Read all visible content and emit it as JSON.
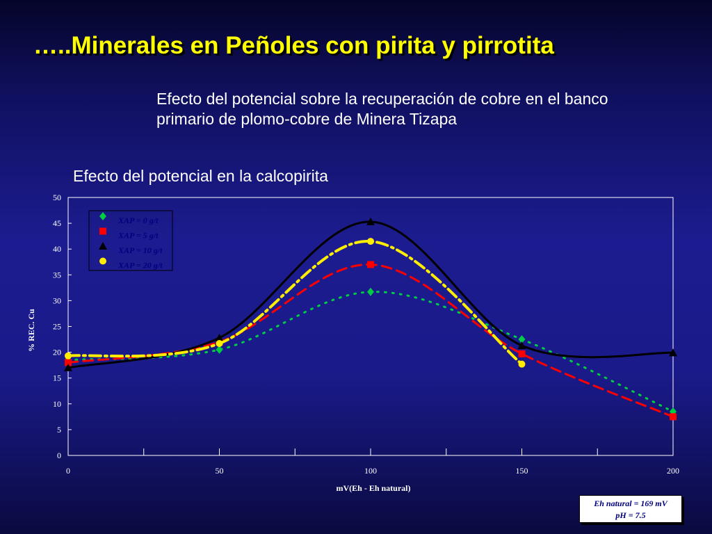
{
  "slide": {
    "title": "…..Minerales en Peñoles con pirita y pirrotita",
    "subtitle": "Efecto del potencial sobre la recuperación de cobre en el banco primario de plomo-cobre de Minera Tizapa",
    "chart_heading": "Efecto del potencial en la calcopirita"
  },
  "note": {
    "line1": "Eh natural = 169 mV",
    "line2": "pH = 7.5"
  },
  "chart_data": {
    "type": "line",
    "title": "Efecto del potencial en la calcopirita",
    "xlabel": "mV(Eh - Eh natural)",
    "ylabel": "% REC. Cu",
    "xlim": [
      0,
      200
    ],
    "ylim": [
      0,
      50
    ],
    "xticks": [
      0,
      50,
      100,
      150,
      200
    ],
    "yticks": [
      0,
      5,
      10,
      15,
      20,
      25,
      30,
      35,
      40,
      45,
      50
    ],
    "grid": false,
    "legend_position": "top-left",
    "series": [
      {
        "name": "XAP = 0 g/t",
        "color": "#00cc44",
        "marker": "diamond",
        "line": "dotted",
        "x": [
          0,
          50,
          100,
          150,
          200
        ],
        "y": [
          18.5,
          20.5,
          31.7,
          22.5,
          8.5
        ]
      },
      {
        "name": "XAP = 5 g/t",
        "color": "#ff0000",
        "marker": "square",
        "line": "dashed",
        "x": [
          0,
          50,
          100,
          150,
          200
        ],
        "y": [
          18.0,
          22.0,
          37.0,
          19.7,
          7.5
        ]
      },
      {
        "name": "XAP = 10 g/t",
        "color": "#000000",
        "marker": "triangle",
        "line": "solid",
        "x": [
          0,
          50,
          100,
          150,
          200
        ],
        "y": [
          17.0,
          22.8,
          45.3,
          21.3,
          19.9
        ]
      },
      {
        "name": "XAP = 20 g/t",
        "color": "#ffee00",
        "marker": "circle",
        "line": "dashdot",
        "x": [
          0,
          50,
          100,
          150,
          200
        ],
        "y": [
          19.3,
          21.7,
          41.5,
          17.7,
          null
        ]
      }
    ]
  }
}
